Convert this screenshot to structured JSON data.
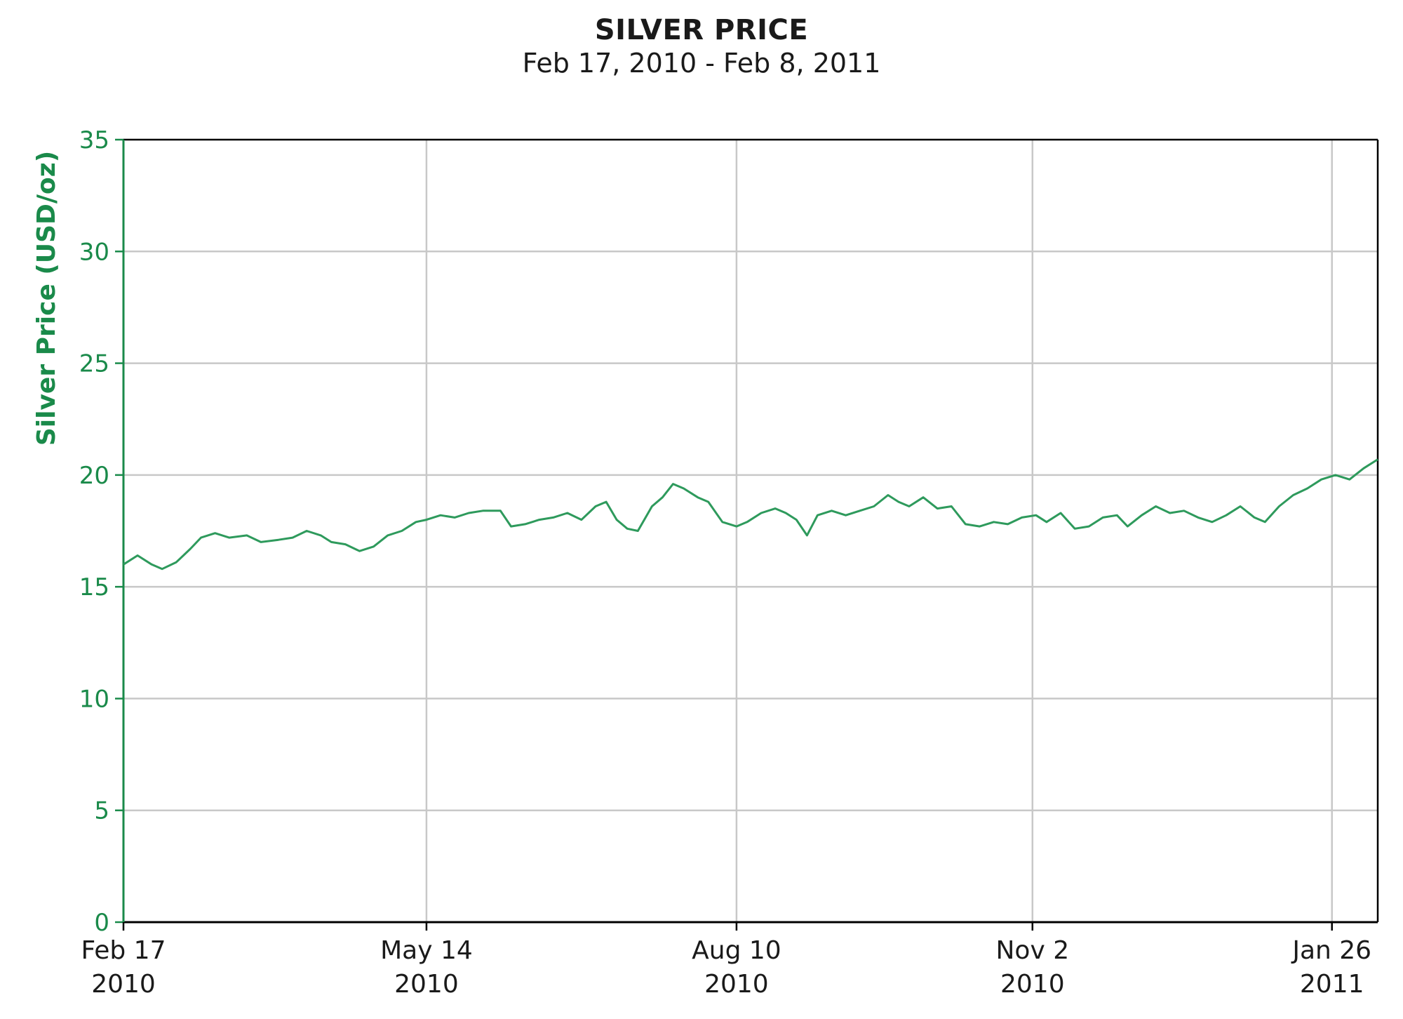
{
  "header": {
    "title": "SILVER PRICE",
    "subtitle": "Feb 17, 2010 - Feb 8, 2011"
  },
  "colors": {
    "line": "#2e9a5c",
    "grid": "#c8c8c8",
    "axis_y": "#1a8a4a",
    "frame": "#000000",
    "ytick_text": "#1a8a4a"
  },
  "chart_data": {
    "type": "line",
    "title": "SILVER PRICE",
    "subtitle": "Feb 17, 2010 - Feb 8, 2011",
    "xlabel": "",
    "ylabel": "Silver Price (USD/oz)",
    "ylim": [
      0,
      35
    ],
    "xlim": [
      "2010-02-17",
      "2011-02-08"
    ],
    "yticks": [
      0,
      5,
      10,
      15,
      20,
      25,
      30,
      35
    ],
    "xticks": [
      {
        "date": "2010-02-17",
        "line1": "Feb 17",
        "line2": "2010"
      },
      {
        "date": "2010-05-14",
        "line1": "May 14",
        "line2": "2010"
      },
      {
        "date": "2010-08-10",
        "line1": "Aug 10",
        "line2": "2010"
      },
      {
        "date": "2010-11-02",
        "line1": "Nov 2",
        "line2": "2010"
      },
      {
        "date": "2011-01-26",
        "line1": "Jan 26",
        "line2": "2011"
      }
    ],
    "grid": true,
    "legend": "none",
    "series": [
      {
        "points": [
          [
            "2010-02-17",
            16.0
          ],
          [
            "2010-02-21",
            16.4
          ],
          [
            "2010-02-25",
            16.0
          ],
          [
            "2010-02-28",
            15.8
          ],
          [
            "2010-03-04",
            16.1
          ],
          [
            "2010-03-08",
            16.7
          ],
          [
            "2010-03-11",
            17.2
          ],
          [
            "2010-03-15",
            17.4
          ],
          [
            "2010-03-19",
            17.2
          ],
          [
            "2010-03-24",
            17.3
          ],
          [
            "2010-03-28",
            17.0
          ],
          [
            "2010-04-02",
            17.1
          ],
          [
            "2010-04-06",
            17.2
          ],
          [
            "2010-04-10",
            17.5
          ],
          [
            "2010-04-14",
            17.3
          ],
          [
            "2010-04-17",
            17.0
          ],
          [
            "2010-04-21",
            16.9
          ],
          [
            "2010-04-25",
            16.6
          ],
          [
            "2010-04-29",
            16.8
          ],
          [
            "2010-05-03",
            17.3
          ],
          [
            "2010-05-07",
            17.5
          ],
          [
            "2010-05-11",
            17.9
          ],
          [
            "2010-05-14",
            18.0
          ],
          [
            "2010-05-18",
            18.2
          ],
          [
            "2010-05-22",
            18.1
          ],
          [
            "2010-05-26",
            18.3
          ],
          [
            "2010-05-30",
            18.4
          ],
          [
            "2010-06-04",
            18.4
          ],
          [
            "2010-06-07",
            17.7
          ],
          [
            "2010-06-11",
            17.8
          ],
          [
            "2010-06-15",
            18.0
          ],
          [
            "2010-06-19",
            18.1
          ],
          [
            "2010-06-23",
            18.3
          ],
          [
            "2010-06-27",
            18.0
          ],
          [
            "2010-07-01",
            18.6
          ],
          [
            "2010-07-04",
            18.8
          ],
          [
            "2010-07-07",
            18.0
          ],
          [
            "2010-07-10",
            17.6
          ],
          [
            "2010-07-13",
            17.5
          ],
          [
            "2010-07-17",
            18.6
          ],
          [
            "2010-07-20",
            19.0
          ],
          [
            "2010-07-23",
            19.6
          ],
          [
            "2010-07-26",
            19.4
          ],
          [
            "2010-07-30",
            19.0
          ],
          [
            "2010-08-02",
            18.8
          ],
          [
            "2010-08-06",
            17.9
          ],
          [
            "2010-08-10",
            17.7
          ],
          [
            "2010-08-13",
            17.9
          ],
          [
            "2010-08-17",
            18.3
          ],
          [
            "2010-08-21",
            18.5
          ],
          [
            "2010-08-24",
            18.3
          ],
          [
            "2010-08-27",
            18.0
          ],
          [
            "2010-08-30",
            17.3
          ],
          [
            "2010-09-02",
            18.2
          ],
          [
            "2010-09-06",
            18.4
          ],
          [
            "2010-09-10",
            18.2
          ],
          [
            "2010-09-14",
            18.4
          ],
          [
            "2010-09-18",
            18.6
          ],
          [
            "2010-09-22",
            19.1
          ],
          [
            "2010-09-25",
            18.8
          ],
          [
            "2010-09-28",
            18.6
          ],
          [
            "2010-10-02",
            19.0
          ],
          [
            "2010-10-06",
            18.5
          ],
          [
            "2010-10-10",
            18.6
          ],
          [
            "2010-10-14",
            17.8
          ],
          [
            "2010-10-18",
            17.7
          ],
          [
            "2010-10-22",
            17.9
          ],
          [
            "2010-10-26",
            17.8
          ],
          [
            "2010-10-30",
            18.1
          ],
          [
            "2010-11-03",
            18.2
          ],
          [
            "2010-11-06",
            17.9
          ],
          [
            "2010-11-10",
            18.3
          ],
          [
            "2010-11-14",
            17.6
          ],
          [
            "2010-11-18",
            17.7
          ],
          [
            "2010-11-22",
            18.1
          ],
          [
            "2010-11-26",
            18.2
          ],
          [
            "2010-11-29",
            17.7
          ],
          [
            "2010-12-03",
            18.2
          ],
          [
            "2010-12-07",
            18.6
          ],
          [
            "2010-12-11",
            18.3
          ],
          [
            "2010-12-15",
            18.4
          ],
          [
            "2010-12-19",
            18.1
          ],
          [
            "2010-12-23",
            17.9
          ],
          [
            "2010-12-27",
            18.2
          ],
          [
            "2010-12-31",
            18.6
          ],
          [
            "2011-01-04",
            18.1
          ],
          [
            "2011-01-07",
            17.9
          ],
          [
            "2011-01-11",
            18.6
          ],
          [
            "2011-01-15",
            19.1
          ],
          [
            "2011-01-19",
            19.4
          ],
          [
            "2011-01-23",
            19.8
          ],
          [
            "2011-01-27",
            20.0
          ],
          [
            "2011-01-31",
            19.8
          ],
          [
            "2011-02-04",
            20.3
          ],
          [
            "2011-02-08",
            20.7
          ]
        ]
      }
    ]
  }
}
